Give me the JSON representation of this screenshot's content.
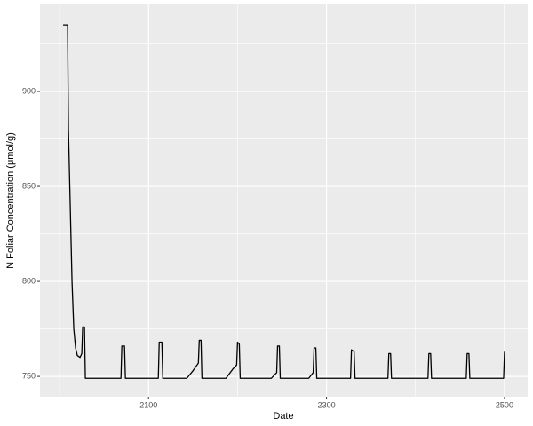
{
  "chart_data": {
    "type": "line",
    "x_label": "Date",
    "y_label": "N Foliar Concentration (μmol/g)",
    "x": [
      2004,
      2009,
      2010,
      2012,
      2014,
      2016,
      2018,
      2020,
      2023,
      2025,
      2026,
      2028,
      2029,
      2069,
      2070,
      2073,
      2074,
      2111,
      2112,
      2115,
      2116,
      2143,
      2150,
      2156,
      2157,
      2159,
      2160,
      2187,
      2195,
      2199,
      2200,
      2202,
      2203,
      2238,
      2244,
      2245,
      2247,
      2248,
      2280,
      2285,
      2286,
      2288,
      2289,
      2327,
      2328,
      2331,
      2332,
      2369,
      2370,
      2372,
      2373,
      2414,
      2415,
      2417,
      2418,
      2457,
      2458,
      2460,
      2461,
      2499,
      2500
    ],
    "series": [
      {
        "color": "#000000",
        "values": [
          935,
          935,
          880,
          840,
          800,
          775,
          765,
          761,
          760,
          762,
          776,
          776,
          749,
          749,
          766,
          766,
          749,
          749,
          768,
          768,
          749,
          749,
          753,
          757,
          769,
          769,
          749,
          749,
          754,
          756,
          768,
          767,
          749,
          749,
          752,
          766,
          766,
          749,
          749,
          752,
          765,
          765,
          749,
          749,
          764,
          763,
          749,
          749,
          762,
          762,
          749,
          749,
          762,
          762,
          749,
          749,
          762,
          762,
          749,
          749,
          763
        ]
      }
    ],
    "xlim": [
      1978,
      2526
    ],
    "ylim": [
      739.3,
      945.8
    ],
    "xticks": [
      2100,
      2300,
      2500
    ],
    "yticks": [
      750,
      800,
      850,
      900
    ],
    "xminorticks": [
      2000,
      2200,
      2400
    ],
    "yminorticks": [
      775,
      825,
      875,
      925
    ],
    "grid": true
  }
}
